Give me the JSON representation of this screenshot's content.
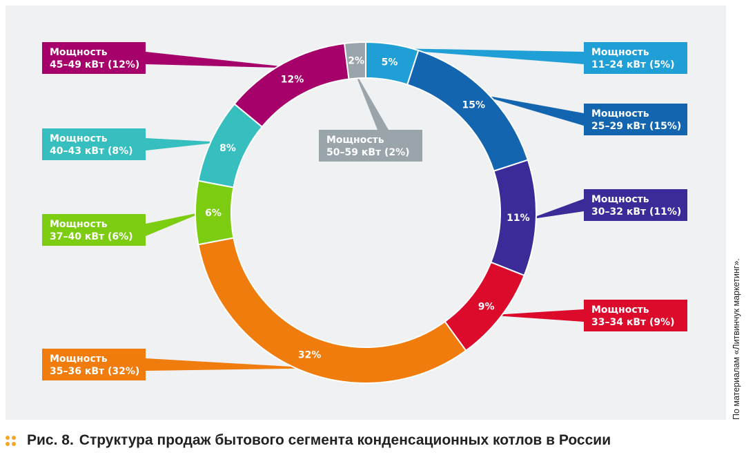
{
  "chart_data": {
    "type": "pie",
    "donut": true,
    "segments": [
      {
        "value_label": "5%",
        "value": 5,
        "label_line1": "Мощность",
        "label_line2": "11–24 кВт (5%)",
        "color": "#1f9fd6"
      },
      {
        "value_label": "15%",
        "value": 15,
        "label_line1": "Мощность",
        "label_line2": "25–29 кВт (15%)",
        "color": "#1465b0"
      },
      {
        "value_label": "11%",
        "value": 11,
        "label_line1": "Мощность",
        "label_line2": "30–32 кВт (11%)",
        "color": "#3a2b99"
      },
      {
        "value_label": "9%",
        "value": 9,
        "label_line1": "Мощность",
        "label_line2": "33–34 кВт (9%)",
        "color": "#dc0a2b"
      },
      {
        "value_label": "32%",
        "value": 32,
        "label_line1": "Мощность",
        "label_line2": "35–36 кВт (32%)",
        "color": "#ef7c0c"
      },
      {
        "value_label": "6%",
        "value": 6,
        "label_line1": "Мощность",
        "label_line2": "37–40 кВт (6%)",
        "color": "#7ccd12"
      },
      {
        "value_label": "8%",
        "value": 8,
        "label_line1": "Мощность",
        "label_line2": "40–43 кВт (8%)",
        "color": "#37bfc0"
      },
      {
        "value_label": "12%",
        "value": 12,
        "label_line1": "Мощность",
        "label_line2": "45–49 кВт (12%)",
        "color": "#a6006b"
      },
      {
        "value_label": "2%",
        "value": 2,
        "label_line1": "Мощность",
        "label_line2": "50–59 кВт (2%)",
        "color": "#9aa4ab"
      }
    ]
  },
  "caption": {
    "figure_number": "Рис. 8.",
    "text": "Структура продаж бытового сегмента конденсационных котлов в России"
  },
  "source_note": "По материалам «Литвинчук маркетинг»."
}
